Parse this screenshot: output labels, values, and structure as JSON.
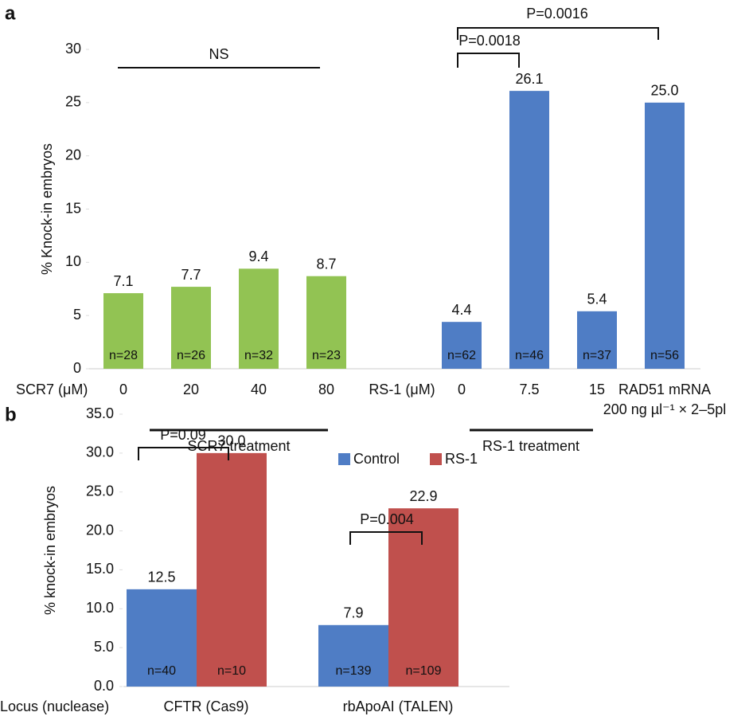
{
  "chart_data": [
    {
      "type": "bar",
      "panel_label": "a",
      "y_label": "% Knock-in embryos",
      "ylim": [
        0,
        30
      ],
      "yticks": [
        0,
        5,
        10,
        15,
        20,
        25,
        30
      ],
      "groups": [
        {
          "axis_label": "SCR7 (μM)",
          "treatment": "SCR7 treatment",
          "color": "#92c353",
          "categories": [
            "0",
            "20",
            "40",
            "80"
          ],
          "values": [
            7.1,
            7.7,
            9.4,
            8.7
          ],
          "value_labels": [
            "7.1",
            "7.7",
            "9.4",
            "8.7"
          ],
          "n_labels": [
            "n=28",
            "n=26",
            "n=32",
            "n=23"
          ]
        },
        {
          "axis_label": "RS-1 (μM)",
          "treatment": "RS-1 treatment",
          "color": "#4f7dc5",
          "categories": [
            "0",
            "7.5",
            "15",
            [
              "RAD51 mRNA",
              "200 ng µl⁻¹ × 2–5pl"
            ]
          ],
          "values": [
            4.4,
            26.1,
            5.4,
            25.0
          ],
          "value_labels": [
            "4.4",
            "26.1",
            "5.4",
            "25.0"
          ],
          "n_labels": [
            "n=62",
            "n=46",
            "n=37",
            "n=56"
          ]
        }
      ],
      "annotations": [
        "NS",
        "P=0.0018",
        "P=0.0016"
      ]
    },
    {
      "type": "grouped_bar",
      "panel_label": "b",
      "y_label": "% knock-in embryos",
      "x_label": "Locus (nuclease)",
      "categories": [
        "CFTR (Cas9)",
        "rbApoAI (TALEN)"
      ],
      "series": [
        {
          "name": "Control",
          "color": "#4f7dc5",
          "values": [
            12.5,
            7.9
          ],
          "value_labels": [
            "12.5",
            "7.9"
          ],
          "n_labels": [
            "n=40",
            "n=139"
          ]
        },
        {
          "name": "RS-1",
          "color": "#c0504d",
          "values": [
            30.0,
            22.9
          ],
          "value_labels": [
            "30.0",
            "22.9"
          ],
          "n_labels": [
            "n=10",
            "n=109"
          ]
        }
      ],
      "ylim": [
        0,
        35
      ],
      "yticks": [
        {
          "value": 0,
          "label": "0.0"
        },
        {
          "value": 5,
          "label": "5.0"
        },
        {
          "value": 10,
          "label": "10.0"
        },
        {
          "value": 15,
          "label": "15.0"
        },
        {
          "value": 20,
          "label": "20.0"
        },
        {
          "value": 25,
          "label": "25.0"
        },
        {
          "value": 30,
          "label": "30.0"
        },
        {
          "value": 35,
          "label": "35.0"
        }
      ],
      "legend": "top-right",
      "annotations": [
        "P=0.09",
        "P=0.004"
      ]
    }
  ]
}
